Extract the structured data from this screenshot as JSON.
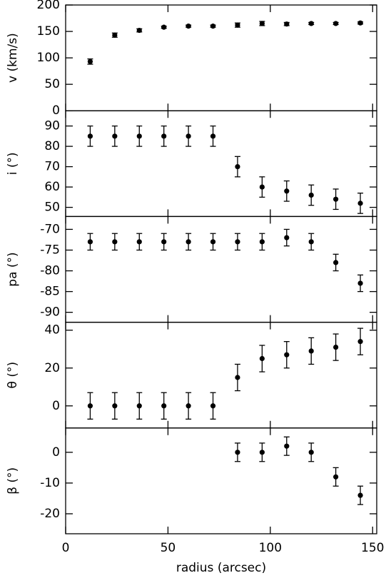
{
  "chart_data": [
    {
      "type": "scatter",
      "ylabel": "v (km/s)",
      "color": "#000000",
      "x": [
        12,
        24,
        36,
        48,
        60,
        72,
        84,
        96,
        108,
        120,
        132,
        144
      ],
      "values": [
        93,
        143,
        152,
        158,
        160,
        160,
        162,
        165,
        164,
        165,
        165,
        166
      ],
      "errors": [
        5,
        4,
        3,
        2,
        2,
        2,
        4,
        4,
        3,
        2,
        2,
        2
      ],
      "xlim": [
        0,
        152
      ],
      "xticks": [
        0,
        50,
        100,
        150
      ],
      "ylim": [
        0,
        200
      ],
      "yticks": [
        0,
        50,
        100,
        150,
        200
      ]
    },
    {
      "type": "scatter",
      "ylabel": "i (°)",
      "color": "#000000",
      "x": [
        12,
        24,
        36,
        48,
        60,
        72,
        84,
        96,
        108,
        120,
        132,
        144
      ],
      "values": [
        85,
        85,
        85,
        85,
        85,
        85,
        70,
        60,
        58,
        56,
        54,
        52
      ],
      "errors": [
        5,
        5,
        5,
        5,
        5,
        5,
        5,
        5,
        5,
        5,
        5,
        5
      ],
      "xlim": [
        0,
        152
      ],
      "xticks": [
        0,
        50,
        100,
        150
      ],
      "ylim": [
        45.5,
        97.5
      ],
      "yticks": [
        50,
        60,
        70,
        80,
        90
      ]
    },
    {
      "type": "scatter",
      "ylabel": "pa (°)",
      "color": "#000000",
      "x": [
        12,
        24,
        36,
        48,
        60,
        72,
        84,
        96,
        108,
        120,
        132,
        144
      ],
      "values": [
        -73,
        -73,
        -73,
        -73,
        -73,
        -73,
        -73,
        -73,
        -72,
        -73,
        -78,
        -83
      ],
      "errors": [
        2,
        2,
        2,
        2,
        2,
        2,
        2,
        2,
        2,
        2,
        2,
        2
      ],
      "xlim": [
        0,
        152
      ],
      "xticks": [
        0,
        50,
        100,
        150
      ],
      "ylim": [
        -92.4,
        -66.9
      ],
      "yticks": [
        -90,
        -85,
        -80,
        -75,
        -70
      ]
    },
    {
      "type": "scatter",
      "ylabel": "θ (°)",
      "color": "#000000",
      "x": [
        12,
        24,
        36,
        48,
        60,
        72,
        84,
        96,
        108,
        120,
        132,
        144
      ],
      "values": [
        0,
        0,
        0,
        0,
        0,
        0,
        15,
        25,
        27,
        29,
        31,
        34
      ],
      "errors": [
        7,
        7,
        7,
        7,
        7,
        7,
        7,
        7,
        7,
        7,
        7,
        7
      ],
      "xlim": [
        0,
        152
      ],
      "xticks": [
        0,
        50,
        100,
        150
      ],
      "ylim": [
        -11.7,
        44.2
      ],
      "yticks": [
        0,
        20,
        40
      ]
    },
    {
      "type": "scatter",
      "ylabel": "β (°)",
      "xlabel": "radius (arcsec)",
      "color": "#000000",
      "x": [
        84,
        96,
        108,
        120,
        132,
        144
      ],
      "values": [
        0,
        0,
        2,
        0,
        -8,
        -14
      ],
      "errors": [
        3,
        3,
        3,
        3,
        3,
        3
      ],
      "xlim": [
        0,
        152
      ],
      "xticks": [
        0,
        50,
        100,
        150
      ],
      "ylim": [
        -26.5,
        7.9
      ],
      "yticks": [
        -20,
        -10,
        0
      ]
    }
  ]
}
